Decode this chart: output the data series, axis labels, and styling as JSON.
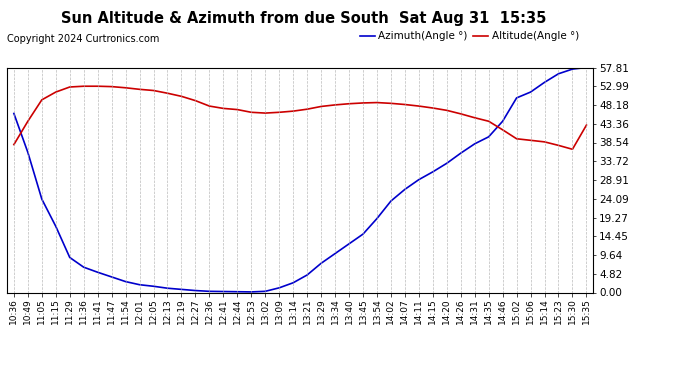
{
  "title": "Sun Altitude & Azimuth from due South  Sat Aug 31  15:35",
  "copyright": "Copyright 2024 Curtronics.com",
  "legend_blue": "Azimuth(Angle °)",
  "legend_red": "Altitude(Angle °)",
  "y_ticks": [
    0.0,
    4.82,
    9.64,
    14.45,
    19.27,
    24.09,
    28.91,
    33.72,
    38.54,
    43.36,
    48.18,
    52.99,
    57.81
  ],
  "ymin": 0.0,
  "ymax": 57.81,
  "bg_color": "#ffffff",
  "grid_color": "#aaaaaa",
  "line_blue_color": "#0000cc",
  "line_red_color": "#cc0000",
  "x_labels": [
    "10:36",
    "10:49",
    "11:05",
    "11:15",
    "11:29",
    "11:36",
    "11:41",
    "11:47",
    "11:54",
    "12:01",
    "12:05",
    "12:13",
    "12:19",
    "12:27",
    "12:36",
    "12:41",
    "12:44",
    "12:53",
    "13:02",
    "13:09",
    "13:14",
    "13:21",
    "13:29",
    "13:34",
    "13:40",
    "13:45",
    "13:54",
    "14:02",
    "14:07",
    "14:11",
    "14:15",
    "14:20",
    "14:26",
    "14:31",
    "14:35",
    "14:46",
    "15:02",
    "15:06",
    "15:14",
    "15:23",
    "15:30",
    "15:35"
  ],
  "altitude_data": [
    38.0,
    44.0,
    49.5,
    51.5,
    52.8,
    53.0,
    53.0,
    52.9,
    52.6,
    52.2,
    51.9,
    51.2,
    50.4,
    49.3,
    47.9,
    47.3,
    47.0,
    46.3,
    46.1,
    46.3,
    46.6,
    47.1,
    47.8,
    48.2,
    48.5,
    48.7,
    48.8,
    48.6,
    48.3,
    47.9,
    47.4,
    46.8,
    45.9,
    44.9,
    44.0,
    41.8,
    39.5,
    39.1,
    38.7,
    37.8,
    36.8,
    43.0
  ],
  "azimuth_data": [
    46.0,
    36.0,
    24.0,
    17.0,
    9.0,
    6.5,
    5.2,
    4.0,
    2.8,
    2.0,
    1.6,
    1.1,
    0.8,
    0.5,
    0.3,
    0.25,
    0.2,
    0.15,
    0.3,
    1.2,
    2.5,
    4.5,
    7.5,
    10.0,
    12.5,
    15.0,
    19.0,
    23.5,
    26.5,
    29.0,
    31.0,
    33.2,
    35.8,
    38.2,
    40.0,
    44.0,
    50.0,
    51.5,
    54.0,
    56.2,
    57.4,
    57.81
  ]
}
